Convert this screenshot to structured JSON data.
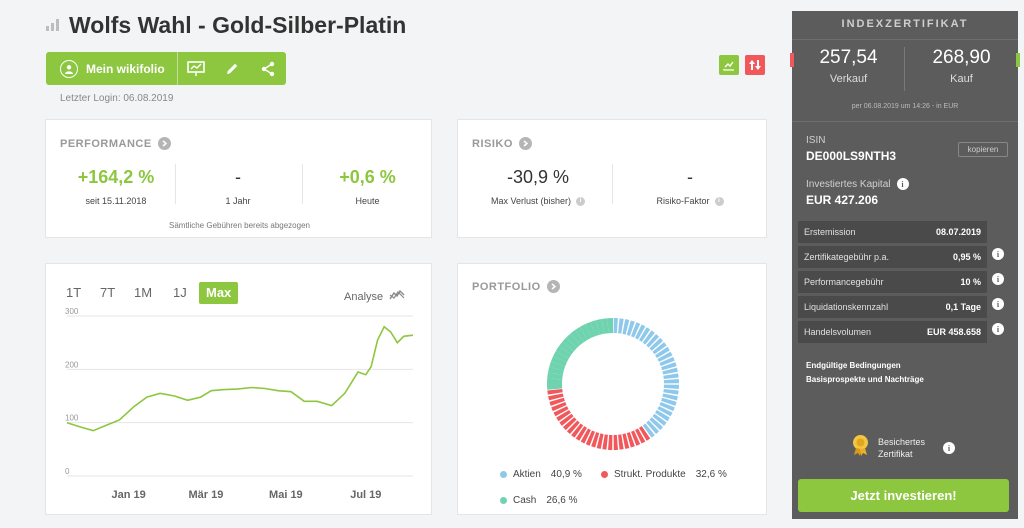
{
  "header": {
    "title": "Wolfs Wahl - Gold-Silber-Platin",
    "my_wikifolio_label": "Mein wikifolio",
    "last_login": "Letzter Login: 06.08.2019"
  },
  "performance": {
    "heading": "PERFORMANCE",
    "since_value": "+164,2 %",
    "since_label": "seit 15.11.2018",
    "year_value": "-",
    "year_label": "1 Jahr",
    "today_value": "+0,6 %",
    "today_label": "Heute",
    "fee_note": "Sämtliche Gebühren bereits abgezogen"
  },
  "risk": {
    "heading": "RISIKO",
    "max_loss_value": "-30,9 %",
    "max_loss_label": "Max Verlust (bisher)",
    "risk_factor_value": "-",
    "risk_factor_label": "Risiko-Faktor"
  },
  "chart_controls": {
    "ranges": [
      "1T",
      "7T",
      "1M",
      "1J",
      "Max"
    ],
    "active_range": "Max",
    "analyse_label": "Analyse"
  },
  "portfolio": {
    "heading": "PORTFOLIO",
    "legend": [
      {
        "name": "Aktien",
        "value": "40,9 %",
        "color": "#8ec8ea"
      },
      {
        "name": "Strukt. Produkte",
        "value": "32,6 %",
        "color": "#f0585c"
      },
      {
        "name": "Cash",
        "value": "26,6 %",
        "color": "#6fd3b0"
      }
    ]
  },
  "sidebar": {
    "heading": "INDEXZERTIFIKAT",
    "sell_price": "257,54",
    "sell_label": "Verkauf",
    "buy_price": "268,90",
    "buy_label": "Kauf",
    "price_date": "per 06.08.2019 um 14:26 - in EUR",
    "isin_label": "ISIN",
    "isin_value": "DE000LS9NTH3",
    "copy_label": "kopieren",
    "capital_label": "Investiertes Kapital",
    "capital_value": "EUR 427.206",
    "rows": [
      {
        "label": "Erstemission",
        "value": "08.07.2019"
      },
      {
        "label": "Zertifikategebühr p.a.",
        "value": "0,95 %"
      },
      {
        "label": "Performancegebühr",
        "value": "10 %"
      },
      {
        "label": "Liquidationskennzahl",
        "value": "0,1 Tage"
      },
      {
        "label": "Handelsvolumen",
        "value": "EUR 458.658"
      }
    ],
    "link_terms": "Endgültige Bedingungen",
    "link_prospect": "Basisprospekte und Nachträge",
    "secured_line1": "Besichertes",
    "secured_line2": "Zertifikat",
    "invest_button": "Jetzt investieren!"
  },
  "colors": {
    "accent": "#8dc63f",
    "red_icon": "#f0585c",
    "sidebar_bg": "#5c5c5c"
  },
  "chart_data": {
    "type": "line",
    "y_ticks": [
      "300",
      "200",
      "100",
      "0"
    ],
    "ylim": [
      0,
      300
    ],
    "x_ticks": [
      "Jan 19",
      "Mär 19",
      "Mai 19",
      "Jul 19"
    ],
    "x": [
      "2018-11-15",
      "2018-11-25",
      "2018-12-05",
      "2018-12-15",
      "2018-12-25",
      "2019-01-05",
      "2019-01-15",
      "2019-01-25",
      "2019-02-05",
      "2019-02-15",
      "2019-02-25",
      "2019-03-05",
      "2019-03-15",
      "2019-03-25",
      "2019-04-05",
      "2019-04-15",
      "2019-04-25",
      "2019-05-05",
      "2019-05-15",
      "2019-05-25",
      "2019-06-05",
      "2019-06-15",
      "2019-06-20",
      "2019-06-25",
      "2019-07-01",
      "2019-07-05",
      "2019-07-10",
      "2019-07-15",
      "2019-07-20",
      "2019-07-25",
      "2019-07-30",
      "2019-08-06"
    ],
    "series": [
      {
        "color": "#8dc63f",
        "values": [
          100,
          92,
          85,
          95,
          105,
          130,
          148,
          155,
          150,
          142,
          148,
          160,
          162,
          163,
          166,
          164,
          160,
          158,
          140,
          140,
          132,
          155,
          175,
          195,
          190,
          205,
          255,
          280,
          270,
          250,
          262,
          264
        ]
      }
    ]
  }
}
